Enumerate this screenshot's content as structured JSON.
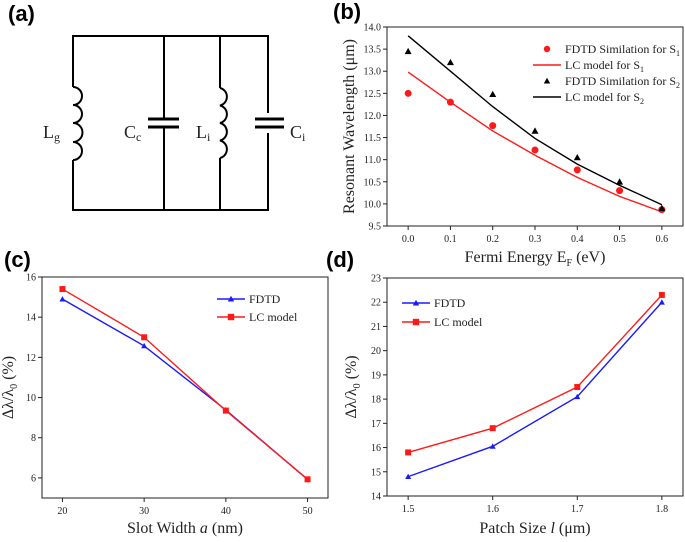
{
  "panel_labels": [
    "(a)",
    "(b)",
    "(c)",
    "(d)"
  ],
  "circuit": {
    "labels": {
      "Lg": {
        "main": "L",
        "sub": "g"
      },
      "Cc": {
        "main": "C",
        "sub": "c"
      },
      "Li": {
        "main": "L",
        "sub": "i"
      },
      "Ci": {
        "main": "C",
        "sub": "i"
      }
    }
  },
  "chart_data": [
    {
      "panel": "(b)",
      "type": "line+scatter",
      "xlabel": "Fermi Energy E",
      "xlabel_sub": "F",
      "xlabel_unit": " (eV)",
      "ylabel": "Resonant Wavelength (μm)",
      "xlim": [
        -0.05,
        0.65
      ],
      "ylim": [
        9.5,
        14.0
      ],
      "xticks": [
        "0.0",
        "0.1",
        "0.2",
        "0.3",
        "0.4",
        "0.5",
        "0.6"
      ],
      "yticks": [
        "9.5",
        "10.0",
        "10.5",
        "11.0",
        "11.5",
        "12.0",
        "12.5",
        "13.0",
        "13.5",
        "14.0"
      ],
      "x": [
        0,
        0.1,
        0.2,
        0.3,
        0.4,
        0.5,
        0.6
      ],
      "legend_position": "top-right",
      "series": [
        {
          "name": "FDTD Similation for S",
          "name_sub": "1",
          "kind": "scatter",
          "marker": "circle",
          "color": "#ff1a1a",
          "values": [
            12.5,
            12.3,
            11.77,
            11.22,
            10.77,
            10.3,
            9.87
          ]
        },
        {
          "name": "LC model for S",
          "name_sub": "1",
          "kind": "line",
          "color": "#ff1a1a",
          "values": [
            12.98,
            12.3,
            11.65,
            11.1,
            10.6,
            10.17,
            9.82
          ]
        },
        {
          "name": "FDTD Similation for S",
          "name_sub": "2",
          "kind": "scatter",
          "marker": "triangle",
          "color": "#000000",
          "values": [
            13.45,
            13.2,
            12.48,
            11.65,
            11.05,
            10.5,
            9.9
          ]
        },
        {
          "name": "LC model for S",
          "name_sub": "2",
          "kind": "line",
          "color": "#000000",
          "values": [
            13.8,
            13.0,
            12.2,
            11.48,
            10.9,
            10.42,
            9.98
          ]
        }
      ]
    },
    {
      "panel": "(c)",
      "type": "line",
      "xlabel": "Slot Width ",
      "xlabel_italic": "a",
      "xlabel_unit": " (nm)",
      "ylabel": "Δλ/λ",
      "ylabel_sub": "0",
      "ylabel_unit": " (%)",
      "xlim": [
        17.5,
        52.5
      ],
      "ylim": [
        5,
        16
      ],
      "xticks": [
        "20",
        "30",
        "40",
        "50"
      ],
      "yticks": [
        "6",
        "8",
        "10",
        "12",
        "14",
        "16"
      ],
      "x": [
        20,
        30,
        40,
        50
      ],
      "legend_position": "top-right",
      "series": [
        {
          "name": "FDTD",
          "marker": "triangle",
          "color": "#1a1aff",
          "values": [
            14.9,
            12.57,
            9.38,
            5.92
          ]
        },
        {
          "name": "LC model",
          "marker": "square",
          "color": "#ff1a1a",
          "values": [
            15.4,
            13.0,
            9.35,
            5.93
          ]
        }
      ]
    },
    {
      "panel": "(d)",
      "type": "line",
      "xlabel": "Patch Size ",
      "xlabel_italic": "l",
      "xlabel_unit": " (μm)",
      "ylabel": "Δλ/λ",
      "ylabel_sub": "0",
      "ylabel_unit": " (%)",
      "xlim": [
        1.475,
        1.825
      ],
      "ylim": [
        14,
        23
      ],
      "xticks": [
        "1.5",
        "1.6",
        "1.7",
        "1.8"
      ],
      "yticks": [
        "14",
        "15",
        "16",
        "17",
        "18",
        "19",
        "20",
        "21",
        "22",
        "23"
      ],
      "x": [
        1.5,
        1.6,
        1.7,
        1.8
      ],
      "legend_position": "top-left",
      "series": [
        {
          "name": "FDTD",
          "marker": "triangle",
          "color": "#1a1aff",
          "values": [
            14.8,
            16.05,
            18.1,
            22.0
          ]
        },
        {
          "name": "LC model",
          "marker": "square",
          "color": "#ff1a1a",
          "values": [
            15.8,
            16.8,
            18.5,
            22.3
          ]
        }
      ]
    }
  ]
}
